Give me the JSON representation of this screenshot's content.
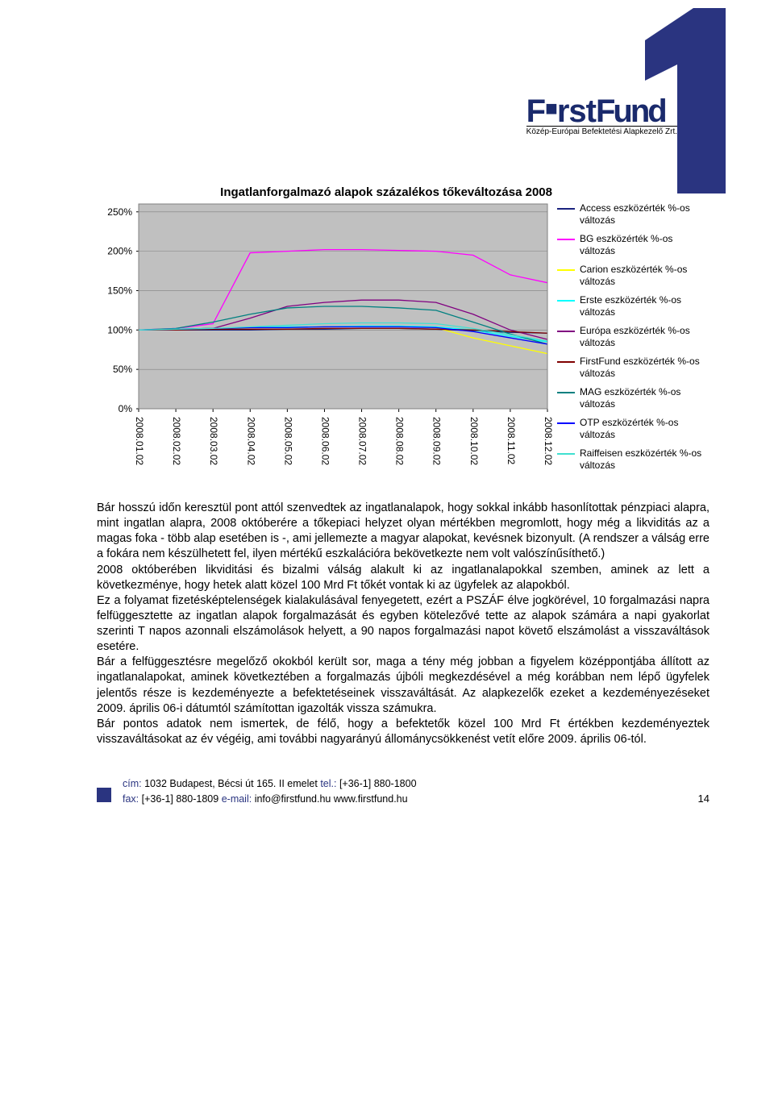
{
  "branding": {
    "logo_line1": "FirstFund",
    "logo_line2": "Közép-Európai Befektetési Alapkezelő Zrt."
  },
  "chart": {
    "type": "line",
    "title": "Ingatlanforgalmazó alapok százalékos tőkeváltozása 2008",
    "background_color": "#c0c0c0",
    "grid_color": "#808080",
    "border_color": "#808080",
    "text_color": "#000000",
    "label_fontsize": 12,
    "ylim": [
      0,
      260
    ],
    "ytick_step": 50,
    "y_ticks": [
      "0%",
      "50%",
      "100%",
      "150%",
      "200%",
      "250%"
    ],
    "x_ticks": [
      "2008.01.02",
      "2008.02.02",
      "2008.03.02",
      "2008.04.02",
      "2008.05.02",
      "2008.06.02",
      "2008.07.02",
      "2008.08.02",
      "2008.09.02",
      "2008.10.02",
      "2008.11.02",
      "2008.12.02"
    ],
    "line_width": 1.3,
    "series": [
      {
        "label": "Access eszközérték %-os változás",
        "color": "#1a237e",
        "values": [
          100,
          100,
          100,
          100,
          101,
          101,
          102,
          102,
          101,
          99,
          97,
          96
        ]
      },
      {
        "label": "BG eszközérték %-os változás",
        "color": "#ff00ff",
        "values": [
          100,
          102,
          108,
          198,
          200,
          202,
          202,
          201,
          200,
          195,
          170,
          160
        ]
      },
      {
        "label": "Carion eszközérték %-os változás",
        "color": "#ffff00",
        "values": [
          100,
          101,
          102,
          103,
          103,
          104,
          104,
          104,
          103,
          90,
          80,
          70
        ]
      },
      {
        "label": "Erste eszközérték %-os változás",
        "color": "#00ffff",
        "values": [
          100,
          101,
          102,
          103,
          104,
          104,
          105,
          105,
          104,
          100,
          92,
          85
        ]
      },
      {
        "label": "Európa eszközérték %-os változás",
        "color": "#800080",
        "values": [
          100,
          101,
          102,
          115,
          130,
          135,
          138,
          138,
          135,
          120,
          100,
          88
        ]
      },
      {
        "label": "FirstFund eszközérték %-os változás",
        "color": "#800000",
        "values": [
          100,
          100,
          101,
          101,
          101,
          102,
          102,
          102,
          101,
          100,
          98,
          96
        ]
      },
      {
        "label": "MAG eszközérték %-os változás",
        "color": "#008080",
        "values": [
          100,
          102,
          110,
          120,
          128,
          130,
          130,
          128,
          125,
          110,
          95,
          82
        ]
      },
      {
        "label": "OTP eszközérték %-os változás",
        "color": "#0000ff",
        "values": [
          100,
          101,
          102,
          103,
          103,
          104,
          104,
          104,
          103,
          98,
          90,
          82
        ]
      },
      {
        "label": "Raiffeisen eszközérték %-os változás",
        "color": "#40e0d0",
        "values": [
          100,
          101,
          102,
          104,
          106,
          108,
          109,
          109,
          108,
          102,
          94,
          86
        ]
      }
    ]
  },
  "body": {
    "p1": "Bár hosszú időn keresztül pont attól szenvedtek az ingatlanalapok, hogy sokkal inkább hasonlítottak pénzpiaci alapra, mint ingatlan alapra, 2008 októberére a tőkepiaci helyzet olyan mértékben megromlott, hogy még a likviditás az a magas foka - több alap esetében is -, ami jellemezte a magyar alapokat, kevésnek bizonyult. (A rendszer a válság erre a fokára nem készülhetett fel, ilyen mértékű eszkalációra bekövetkezte nem volt valószínűsíthető.)",
    "p2": "2008 októberében likviditási és bizalmi válság alakult ki az ingatlanalapokkal szemben, aminek az lett a következménye, hogy hetek alatt közel 100 Mrd Ft tőkét vontak ki az ügyfelek az alapokból.",
    "p3": "Ez a folyamat fizetésképtelenségek kialakulásával fenyegetett, ezért a PSZÁF élve jogkörével, 10 forgalmazási napra felfüggesztette az ingatlan alapok forgalmazását és egyben kötelezővé tette az alapok számára a napi gyakorlat szerinti T napos azonnali elszámolások helyett, a 90 napos forgalmazási napot követő elszámolást a visszaváltások esetére.",
    "p4": "Bár a felfüggesztésre megelőző okokból került sor, maga a tény még jobban a figyelem középpontjába állított az ingatlanalapokat, aminek következtében a forgalmazás újbóli megkezdésével a még korábban nem lépő ügyfelek jelentős része is kezdeményezte a befektetéseinek visszaváltását. Az alapkezelők ezeket a kezdeményezéseket 2009. április 06-i dátumtól számítottan igazolták vissza számukra.",
    "p5": "Bár pontos adatok nem ismertek, de félő, hogy a befektetők közel 100 Mrd Ft értékben kezdeményeztek visszaváltásokat az év végéig, ami további nagyarányú állománycsökkenést vetít előre 2009. április 06-tól."
  },
  "footer": {
    "cim_label": "cím:",
    "cim_value": "1032 Budapest, Bécsi út 165. II emelet",
    "tel_label": "tel.:",
    "tel_value": "[+36-1] 880-1800",
    "fax_label": "fax:",
    "fax_value": "[+36-1] 880-1809",
    "email_label": "e-mail:",
    "email_value": "info@firstfund.hu",
    "web_value": "www.firstfund.hu",
    "page_number": "14"
  }
}
